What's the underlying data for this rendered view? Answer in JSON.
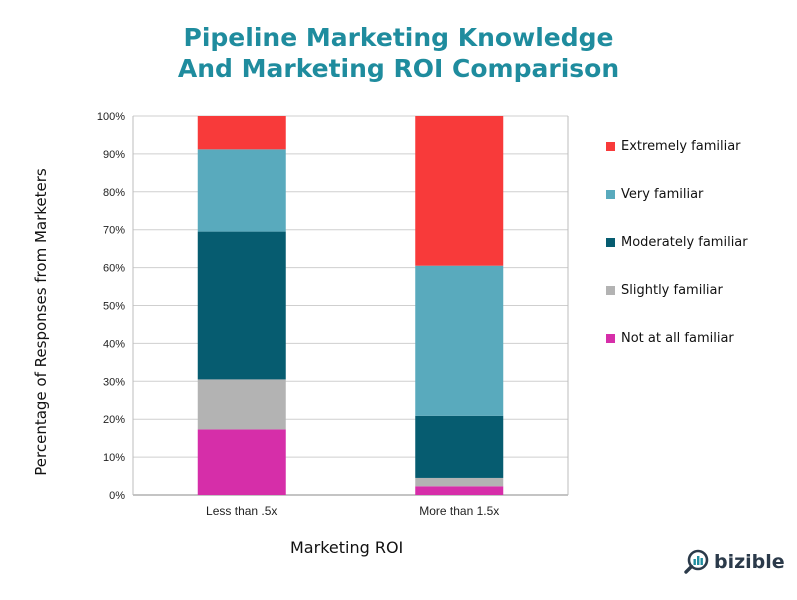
{
  "title_lines": [
    "Pipeline Marketing Knowledge",
    "And Marketing ROI Comparison"
  ],
  "chart_data": {
    "type": "bar",
    "stacked": true,
    "categories": [
      "Less than .5x",
      "More than 1.5x"
    ],
    "series": [
      {
        "name": "Not at all familiar",
        "color": "#d62ea9",
        "values": [
          17.3,
          2.3
        ]
      },
      {
        "name": "Slightly familiar",
        "color": "#b3b3b3",
        "values": [
          13.2,
          2.2
        ]
      },
      {
        "name": "Moderately familiar",
        "color": "#065c70",
        "values": [
          39.0,
          16.4
        ]
      },
      {
        "name": "Very familiar",
        "color": "#59aabd",
        "values": [
          21.7,
          39.6
        ]
      },
      {
        "name": "Extremely familiar",
        "color": "#f83a3a",
        "values": [
          8.8,
          39.5
        ]
      }
    ],
    "ylim": [
      0,
      100
    ],
    "yticks": [
      "0%",
      "10%",
      "20%",
      "30%",
      "40%",
      "50%",
      "60%",
      "70%",
      "80%",
      "90%",
      "100%"
    ],
    "xlabel": "Marketing ROI",
    "ylabel": "Percentage of Responses from Marketers",
    "grid": true,
    "legend_position": "right",
    "legend_order": [
      "Extremely familiar",
      "Very familiar",
      "Moderately familiar",
      "Slightly familiar",
      "Not at all familiar"
    ]
  },
  "brand": {
    "name": "bizible",
    "icon": "magnifier-chart-icon"
  }
}
